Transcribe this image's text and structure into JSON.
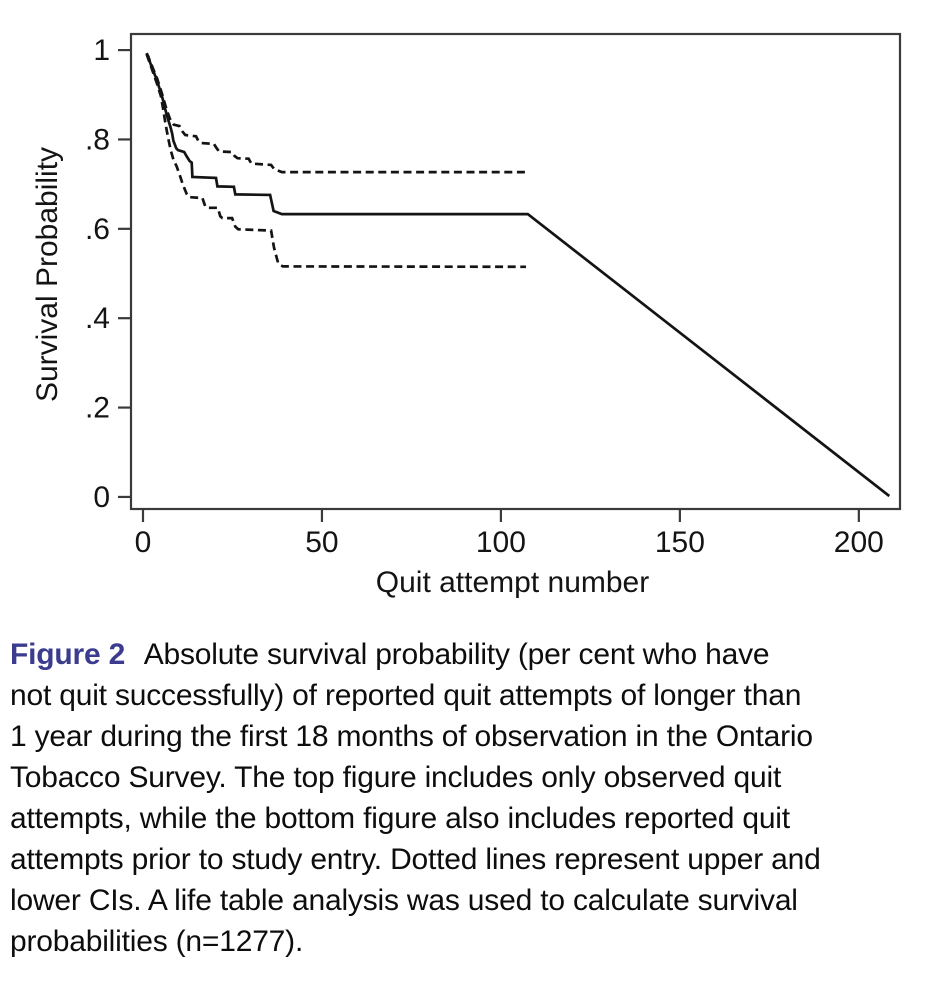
{
  "figure": {
    "caption_label": "Figure 2",
    "caption_label_color": "#3c3c8e",
    "caption_lines": [
      "Absolute survival probability (per cent who have",
      "not quit successfully) of reported quit attempts of longer than",
      "1 year during the first 18 months of observation in the Ontario",
      "Tobacco Survey. The top figure includes only observed quit",
      "attempts, while the bottom figure also includes reported quit",
      "attempts prior to study entry. Dotted lines represent upper and",
      "lower CIs. A life table analysis was used to calculate survival",
      "probabilities (n=1277)."
    ]
  },
  "chart_data": {
    "type": "line",
    "title": "",
    "xlabel": "Quit attempt number",
    "ylabel": "Survival Probability",
    "xlim": [
      -3.35,
      211.5
    ],
    "ylim": [
      -0.027,
      1.036
    ],
    "grid": false,
    "legend": "none",
    "line_color": "#141414",
    "axis_color": "#3a3a3a",
    "x_ticks": {
      "values": [
        0,
        50,
        100,
        150,
        200
      ],
      "labels": [
        "0",
        "50",
        "100",
        "150",
        "200"
      ]
    },
    "y_ticks": {
      "values": [
        0,
        0.2,
        0.4,
        0.6,
        0.8,
        1
      ],
      "labels": [
        "0",
        ".2",
        ".4",
        ".6",
        ".8",
        "1"
      ]
    },
    "series": [
      {
        "name": "survival-estimate",
        "style": "solid",
        "points": [
          [
            1,
            0.993
          ],
          [
            1.5,
            0.985
          ],
          [
            2,
            0.972
          ],
          [
            2.5,
            0.962
          ],
          [
            3,
            0.951
          ],
          [
            3.5,
            0.941
          ],
          [
            4,
            0.93
          ],
          [
            4.5,
            0.917
          ],
          [
            5,
            0.905
          ],
          [
            5.6,
            0.888
          ],
          [
            6.2,
            0.868
          ],
          [
            7,
            0.845
          ],
          [
            7.6,
            0.83
          ],
          [
            8.1,
            0.815
          ],
          [
            8.5,
            0.797
          ],
          [
            9.3,
            0.78
          ],
          [
            9.8,
            0.776
          ],
          [
            11.5,
            0.772
          ],
          [
            12.2,
            0.762
          ],
          [
            13,
            0.752
          ],
          [
            13.6,
            0.748
          ],
          [
            13.8,
            0.716
          ],
          [
            20.4,
            0.714
          ],
          [
            20.8,
            0.695
          ],
          [
            25.4,
            0.694
          ],
          [
            25.8,
            0.677
          ],
          [
            35.5,
            0.676
          ],
          [
            36.5,
            0.64
          ],
          [
            38.8,
            0.633
          ],
          [
            107.5,
            0.633
          ],
          [
            208.5,
            0.002
          ]
        ]
      },
      {
        "name": "upper-ci",
        "style": "dashed",
        "points": [
          [
            1,
            0.993
          ],
          [
            2,
            0.975
          ],
          [
            3,
            0.955
          ],
          [
            4,
            0.935
          ],
          [
            5,
            0.91
          ],
          [
            5.6,
            0.895
          ],
          [
            6.3,
            0.875
          ],
          [
            7,
            0.858
          ],
          [
            7.5,
            0.847
          ],
          [
            8,
            0.84
          ],
          [
            8.6,
            0.833
          ],
          [
            10.2,
            0.83
          ],
          [
            11,
            0.818
          ],
          [
            11.8,
            0.81
          ],
          [
            14.8,
            0.807
          ],
          [
            15.5,
            0.796
          ],
          [
            16.2,
            0.792
          ],
          [
            19.8,
            0.79
          ],
          [
            20.6,
            0.78
          ],
          [
            21.3,
            0.773
          ],
          [
            24.8,
            0.772
          ],
          [
            25.6,
            0.763
          ],
          [
            26.4,
            0.758
          ],
          [
            29.5,
            0.757
          ],
          [
            30.3,
            0.746
          ],
          [
            35.8,
            0.743
          ],
          [
            36.6,
            0.734
          ],
          [
            38.8,
            0.727
          ],
          [
            107,
            0.727
          ]
        ]
      },
      {
        "name": "lower-ci",
        "style": "dashed",
        "points": [
          [
            1,
            0.991
          ],
          [
            2,
            0.969
          ],
          [
            3,
            0.946
          ],
          [
            4,
            0.923
          ],
          [
            5,
            0.897
          ],
          [
            5.6,
            0.87
          ],
          [
            6.3,
            0.835
          ],
          [
            7,
            0.805
          ],
          [
            7.7,
            0.777
          ],
          [
            8.5,
            0.755
          ],
          [
            9.4,
            0.74
          ],
          [
            10.2,
            0.722
          ],
          [
            11.1,
            0.7
          ],
          [
            12.2,
            0.678
          ],
          [
            12.8,
            0.671
          ],
          [
            16.6,
            0.669
          ],
          [
            17.4,
            0.65
          ],
          [
            18,
            0.647
          ],
          [
            20.9,
            0.647
          ],
          [
            21.6,
            0.628
          ],
          [
            22.2,
            0.624
          ],
          [
            24.9,
            0.624
          ],
          [
            25.8,
            0.605
          ],
          [
            26.6,
            0.599
          ],
          [
            35.8,
            0.596
          ],
          [
            36.6,
            0.558
          ],
          [
            37.8,
            0.522
          ],
          [
            39.1,
            0.516
          ],
          [
            107,
            0.515
          ]
        ]
      }
    ]
  }
}
